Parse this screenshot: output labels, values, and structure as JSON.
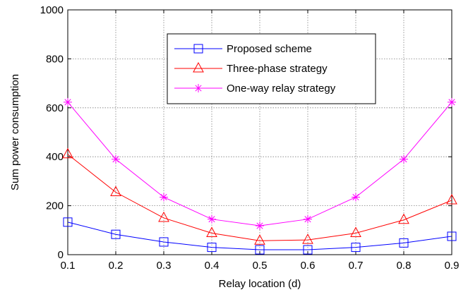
{
  "chart_data": {
    "type": "line",
    "title": "",
    "xlabel": "Relay location (d)",
    "ylabel": "Sum power consumption",
    "xlim": [
      0.1,
      0.9
    ],
    "ylim": [
      0,
      1000
    ],
    "xticks": [
      "0.1",
      "0.2",
      "0.3",
      "0.4",
      "0.5",
      "0.6",
      "0.7",
      "0.8",
      "0.9"
    ],
    "yticks": [
      "0",
      "200",
      "400",
      "600",
      "800",
      "1000"
    ],
    "grid": true,
    "legend_position": "top-right",
    "x": [
      0.1,
      0.2,
      0.3,
      0.4,
      0.5,
      0.6,
      0.7,
      0.8,
      0.9
    ],
    "series": [
      {
        "name": "Proposed scheme",
        "color": "#0000ff",
        "marker": "square",
        "values": [
          133,
          83,
          52,
          30,
          20,
          20,
          30,
          48,
          75
        ]
      },
      {
        "name": "Three-phase strategy",
        "color": "#ff0000",
        "marker": "triangle",
        "values": [
          410,
          255,
          150,
          88,
          57,
          60,
          88,
          142,
          222
        ]
      },
      {
        "name": "One-way relay strategy",
        "color": "#ff00ff",
        "marker": "asterisk",
        "values": [
          623,
          390,
          235,
          145,
          118,
          145,
          235,
          390,
          623
        ]
      }
    ]
  }
}
